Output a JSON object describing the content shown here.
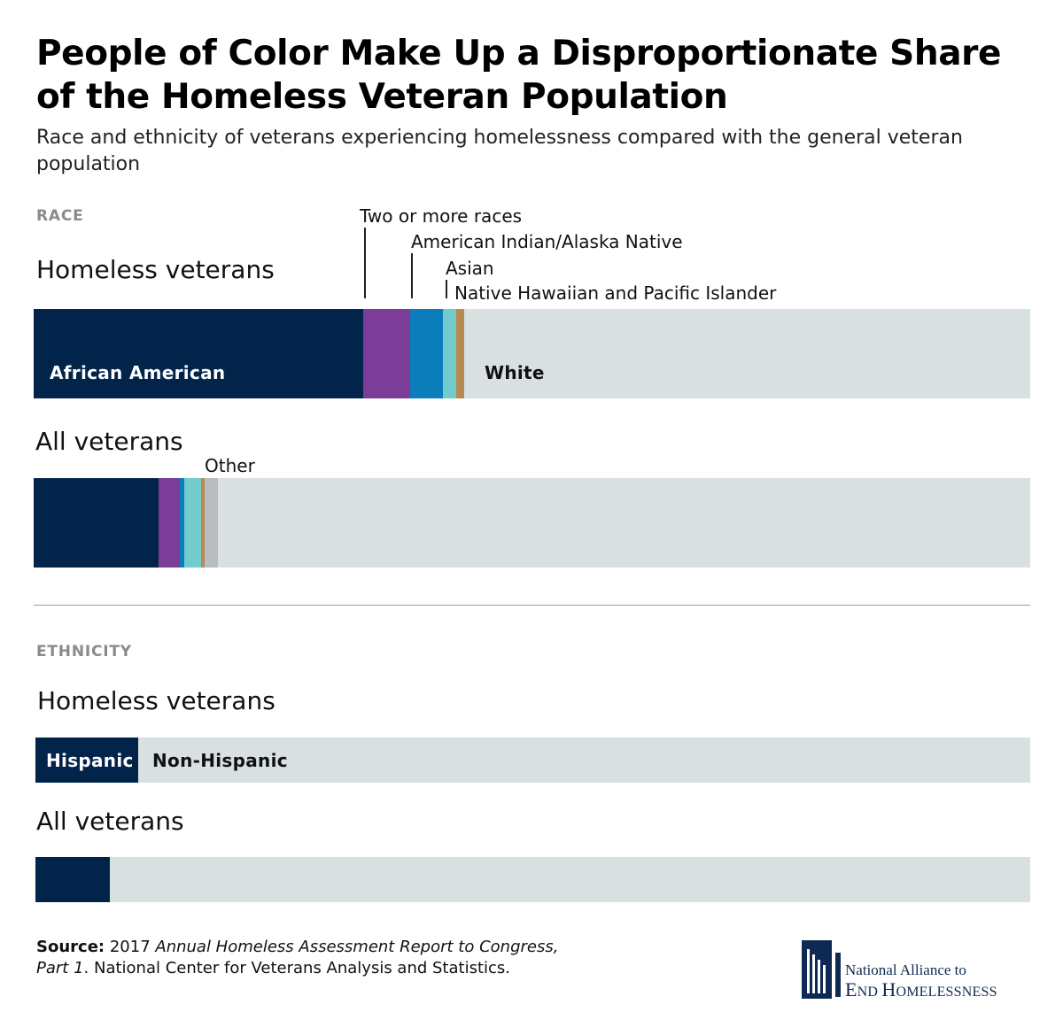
{
  "title": "People of Color Make Up a Disproportionate Share of the Homeless Veteran Population",
  "subtitle": "Race and ethnicity of veterans experiencing homelessness compared with the general veteran population",
  "colors": {
    "african_american": "#03244a",
    "two_or_more": "#7b3d98",
    "american_indian": "#0b7dba",
    "asian": "#72cbcc",
    "nhpi": "#b98a4f",
    "other": "#b9bdbf",
    "white": "#d8e0e2",
    "hispanic": "#03244a",
    "non_hispanic": "#d8e0e2"
  },
  "chart_data": [
    {
      "type": "bar",
      "orientation": "horizontal-stacked",
      "section": "RACE",
      "unit": "percent",
      "xlim": [
        0,
        100
      ],
      "categories": [
        "Homeless veterans",
        "All veterans"
      ],
      "series": [
        {
          "name": "African American",
          "values": [
            33.1,
            12.5
          ]
        },
        {
          "name": "Two or more races",
          "values": [
            4.7,
            2.2
          ]
        },
        {
          "name": "American Indian/Alaska Native",
          "values": [
            3.3,
            0.4
          ]
        },
        {
          "name": "Asian",
          "values": [
            1.3,
            1.7
          ]
        },
        {
          "name": "Native Hawaiian and Pacific Islander",
          "values": [
            0.8,
            0.4
          ]
        },
        {
          "name": "Other",
          "values": [
            0,
            1.3
          ]
        },
        {
          "name": "White",
          "values": [
            56.8,
            81.5
          ]
        }
      ],
      "segment_labels": {
        "african_american": "African American",
        "white": "White"
      },
      "annotations": {
        "two_or_more": "Two or more races",
        "american_indian": "American Indian/Alaska Native",
        "asian": "Asian",
        "nhpi": "Native Hawaiian and Pacific Islander",
        "other": "Other"
      }
    },
    {
      "type": "bar",
      "orientation": "horizontal-stacked",
      "section": "ETHNICITY",
      "unit": "percent",
      "xlim": [
        0,
        100
      ],
      "categories": [
        "Homeless veterans",
        "All veterans"
      ],
      "series": [
        {
          "name": "Hispanic",
          "values": [
            10.3,
            7.5
          ]
        },
        {
          "name": "Non-Hispanic",
          "values": [
            89.7,
            92.5
          ]
        }
      ],
      "segment_labels": {
        "hispanic": "Hispanic",
        "non_hispanic": "Non-Hispanic"
      }
    }
  ],
  "labels": {
    "race_section": "RACE",
    "ethnicity_section": "ETHNICITY",
    "homeless_veterans": "Homeless veterans",
    "all_veterans": "All veterans"
  },
  "source": {
    "bold": "Source:",
    "year": "2017",
    "report_title": "Annual Homeless Assessment Report to Congress, Part 1",
    "rest": ". National Center for Veterans Analysis and Statistics."
  },
  "logo": {
    "line1": "National Alliance to",
    "line2": "End Homelessness"
  }
}
